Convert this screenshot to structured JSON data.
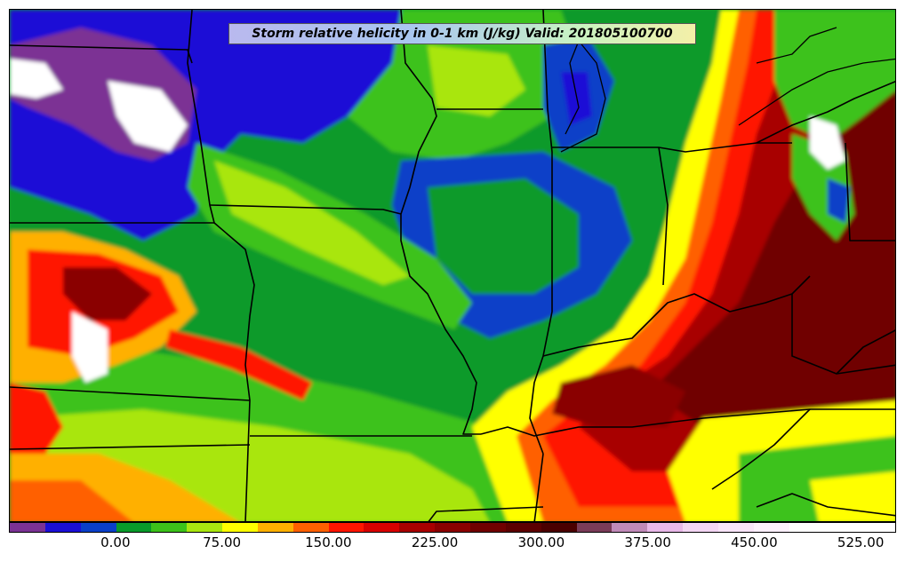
{
  "title": "Storm relative helicity in 0-1 km (J/kg) Valid: 201805100700",
  "variable": "storm relative helicity 0-1 km",
  "units": "J/kg",
  "valid_time": "201805100700",
  "colorbar": {
    "min": -50,
    "max": 575,
    "interval": 25,
    "tick_labels": [
      "0.00",
      "75.00",
      "150.00",
      "225.00",
      "300.00",
      "375.00",
      "450.00",
      "525.00"
    ],
    "tick_values": [
      0,
      75,
      150,
      225,
      300,
      375,
      450,
      525
    ],
    "colors": [
      "#7b3294",
      "#1a0fd6",
      "#0a3fc8",
      "#089a2a",
      "#3cc21a",
      "#a9e610",
      "#ffff00",
      "#ffb000",
      "#ff6000",
      "#ff1500",
      "#d80000",
      "#a80000",
      "#8a0000",
      "#700000",
      "#5c0000",
      "#4a0000",
      "#7a3c58",
      "#c08ab8",
      "#e8b8e8",
      "#f3d6f3",
      "#f8e4f8",
      "#fcf0fc",
      "#ffffff",
      "#ffffff",
      "#ffffff"
    ]
  }
}
